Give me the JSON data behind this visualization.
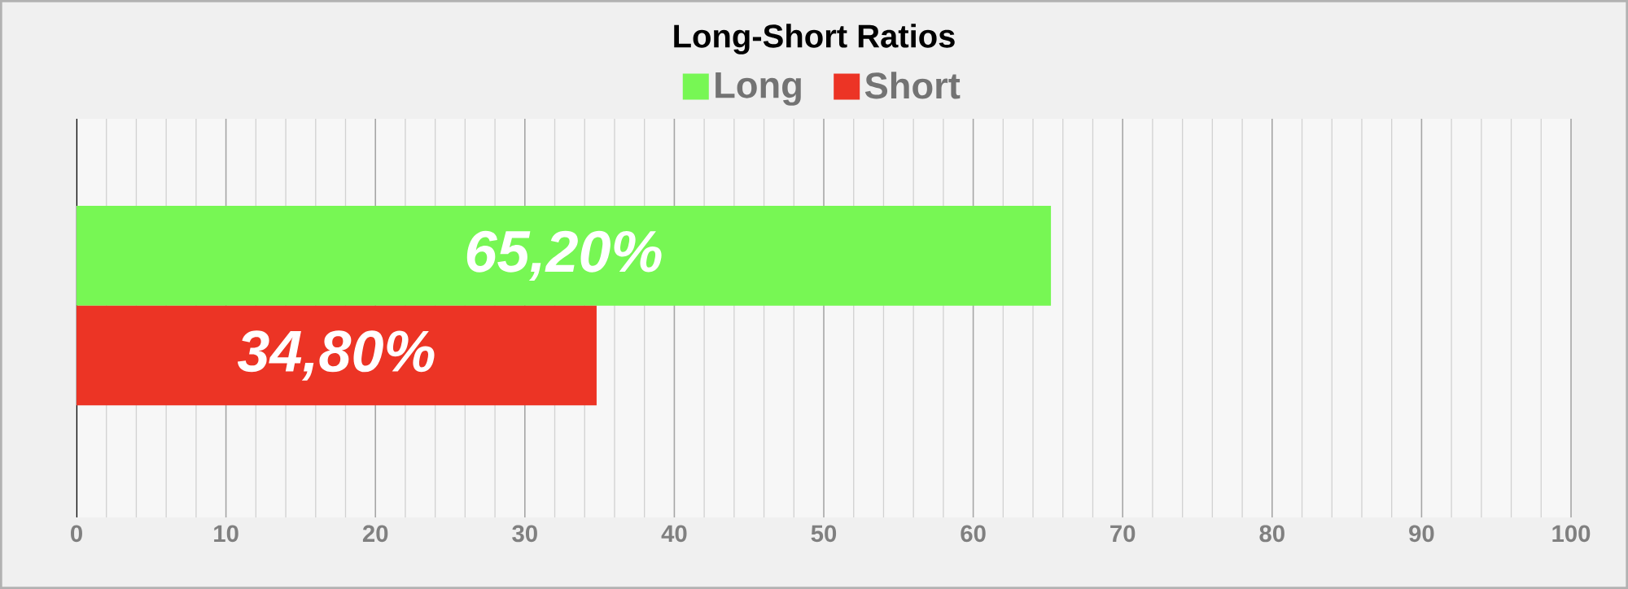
{
  "chart_data": {
    "type": "bar",
    "title": "Long-Short Ratios",
    "orientation": "horizontal",
    "categories": [
      null
    ],
    "series": [
      {
        "name": "Long",
        "color": "#77f754",
        "values": [
          65.2
        ],
        "value_labels": [
          "65,20%"
        ]
      },
      {
        "name": "Short",
        "color": "#ec3425",
        "values": [
          34.8
        ],
        "value_labels": [
          "34,80%"
        ]
      }
    ],
    "xlim": [
      0,
      100
    ],
    "xticks": [
      0,
      10,
      20,
      30,
      40,
      50,
      60,
      70,
      80,
      90,
      100
    ],
    "grid": "x",
    "legend": "top"
  }
}
